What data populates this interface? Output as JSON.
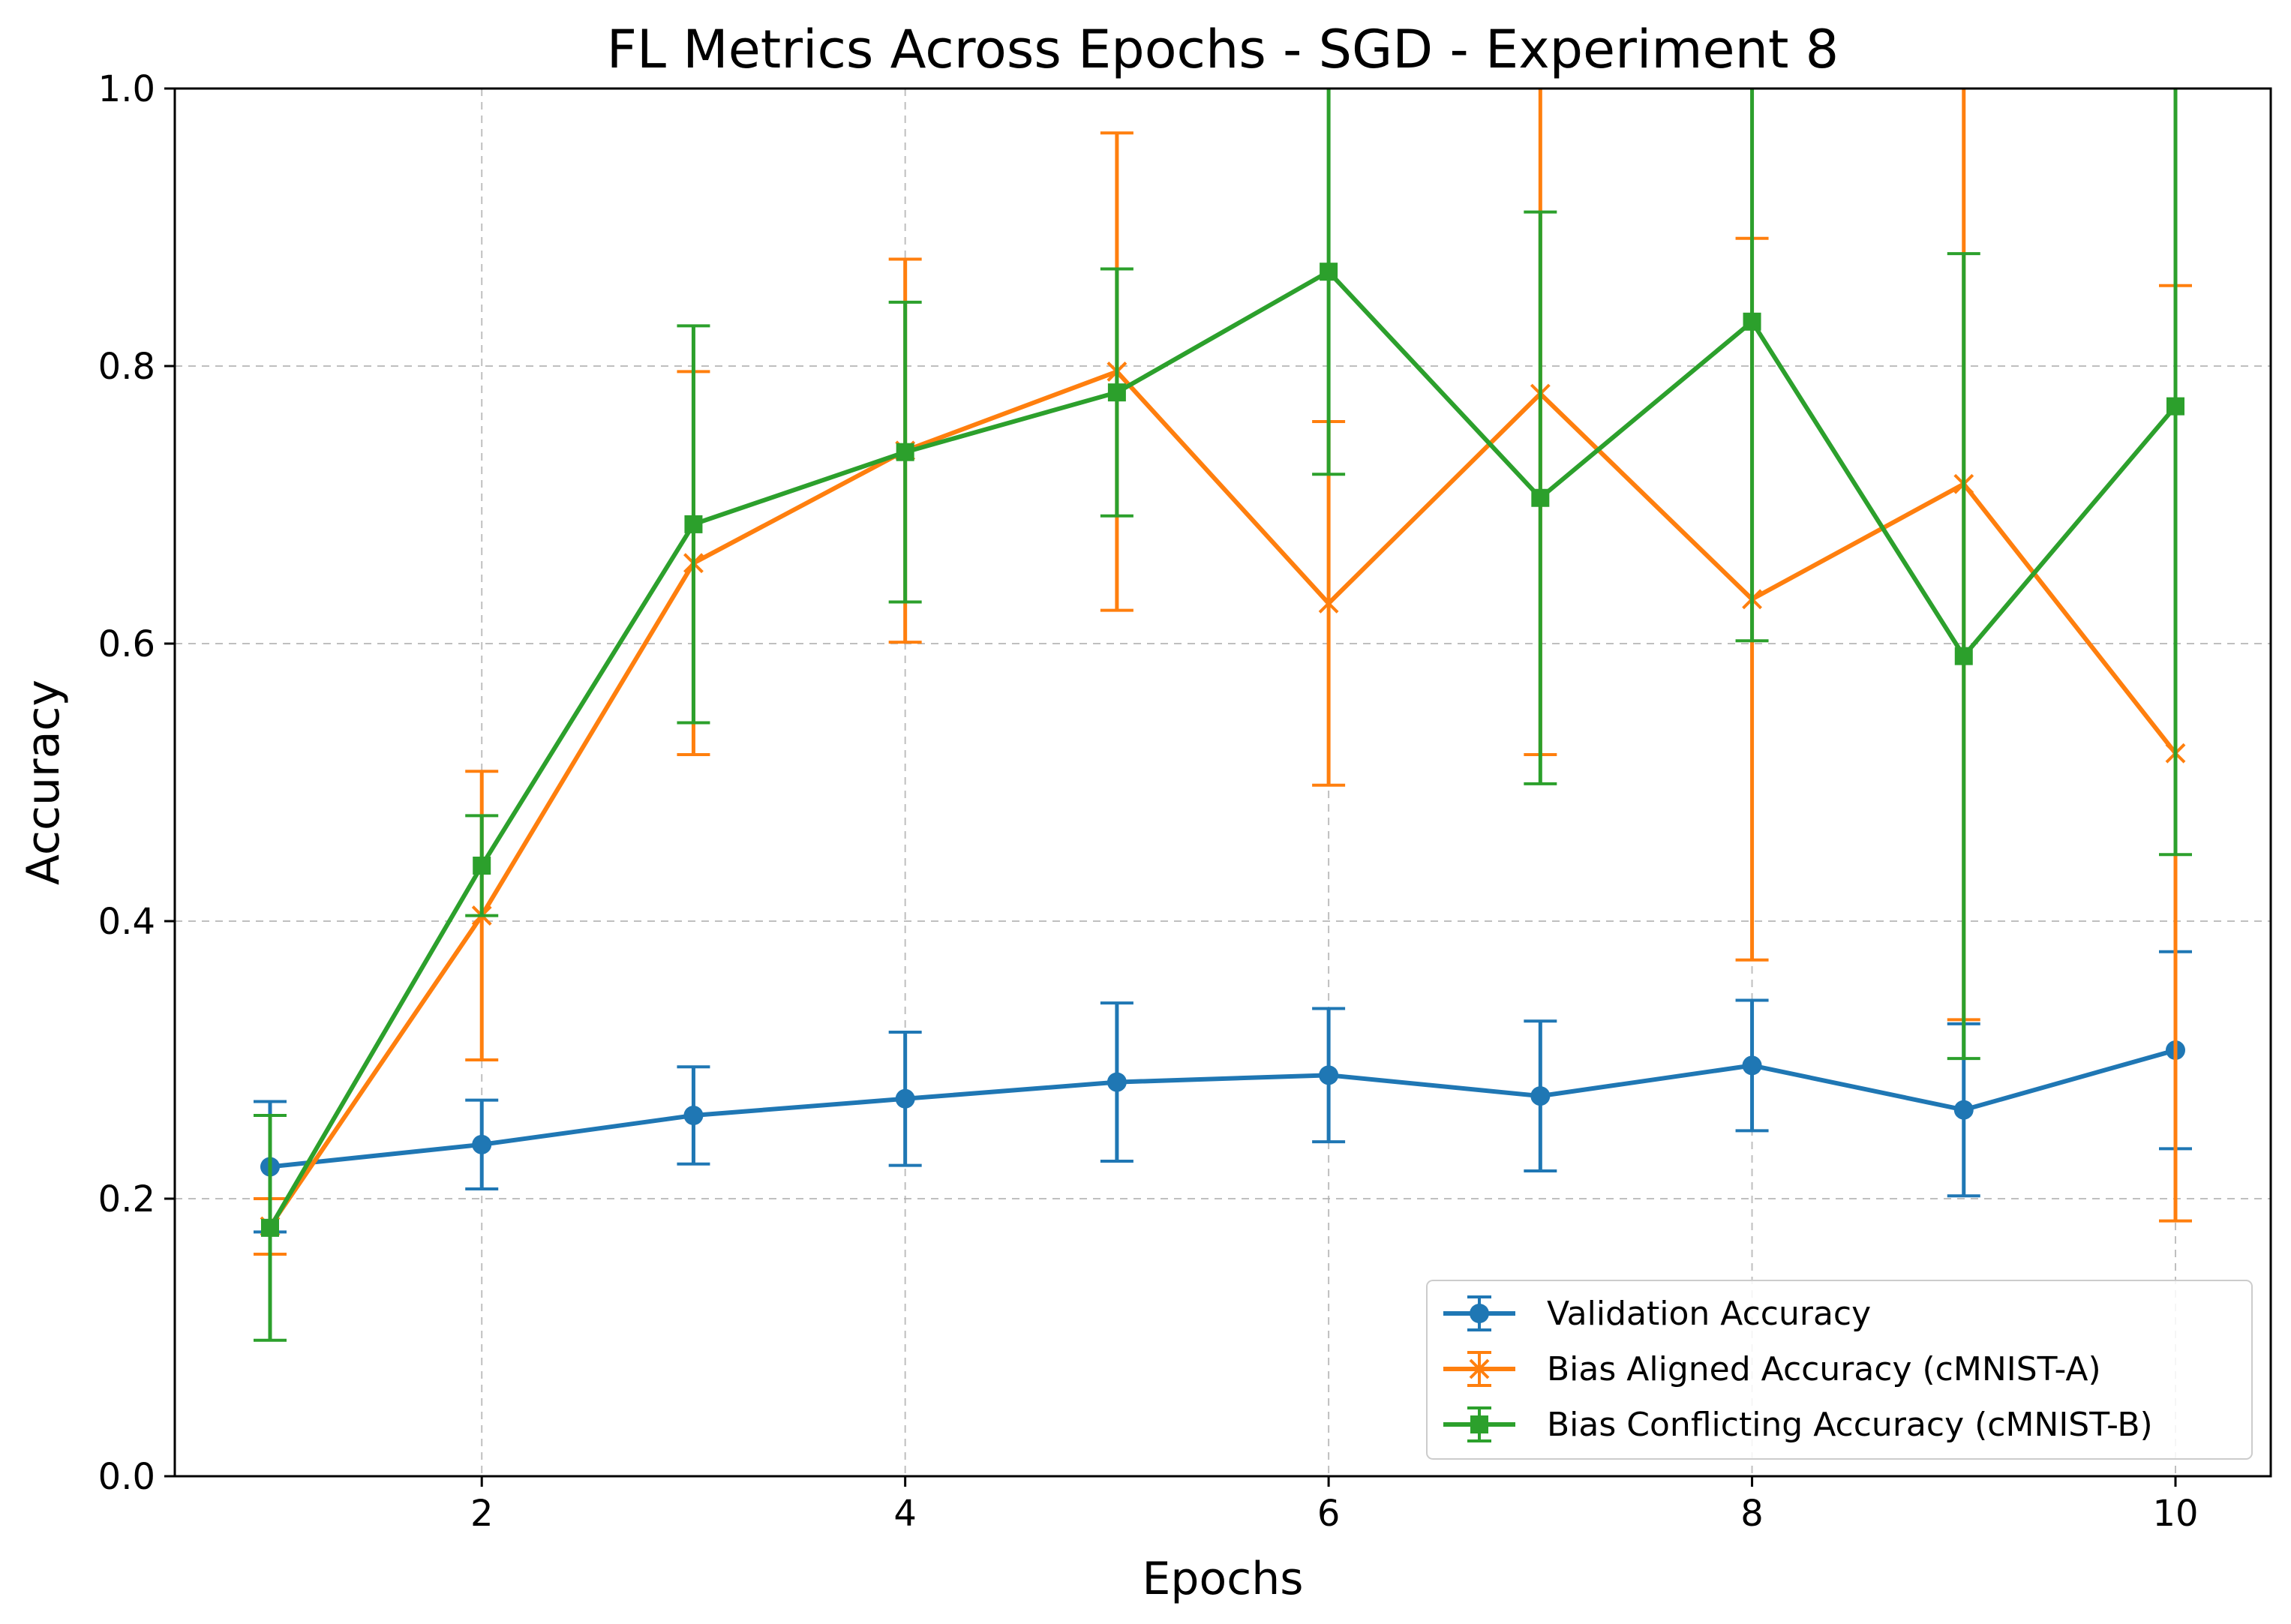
{
  "chart_data": {
    "type": "line",
    "title": "FL Metrics Across Epochs - SGD - Experiment 8",
    "xlabel": "Epochs",
    "ylabel": "Accuracy",
    "xlim": [
      0.55,
      10.45
    ],
    "ylim": [
      0.0,
      1.0
    ],
    "xticks": [
      2,
      4,
      6,
      8,
      10
    ],
    "yticks": [
      0.0,
      0.2,
      0.4,
      0.6,
      0.8,
      1.0
    ],
    "xtick_labels": [
      "2",
      "4",
      "6",
      "8",
      "10"
    ],
    "ytick_labels": [
      "0.0",
      "0.2",
      "0.4",
      "0.6",
      "0.8",
      "1.0"
    ],
    "grid": true,
    "legend_position": "lower-right",
    "x": [
      1,
      2,
      3,
      4,
      5,
      6,
      7,
      8,
      9,
      10
    ],
    "series": [
      {
        "name": "Validation Accuracy",
        "color": "#1f77b4",
        "marker": "circle",
        "values": [
          0.223,
          0.239,
          0.26,
          0.272,
          0.284,
          0.289,
          0.274,
          0.296,
          0.264,
          0.307
        ],
        "errors": [
          0.047,
          0.032,
          0.035,
          0.048,
          0.057,
          0.048,
          0.054,
          0.047,
          0.062,
          0.071
        ]
      },
      {
        "name": "Bias Aligned Accuracy (cMNIST-A)",
        "color": "#ff7f0e",
        "marker": "x",
        "values": [
          0.18,
          0.404,
          0.658,
          0.739,
          0.796,
          0.629,
          0.78,
          0.632,
          0.715,
          0.521
        ],
        "errors": [
          0.02,
          0.104,
          0.138,
          0.138,
          0.172,
          0.131,
          0.26,
          0.26,
          0.386,
          0.337
        ]
      },
      {
        "name": "Bias Conflicting Accuracy (cMNIST-B)",
        "color": "#2ca02c",
        "marker": "square",
        "values": [
          0.179,
          0.44,
          0.686,
          0.738,
          0.781,
          0.868,
          0.705,
          0.832,
          0.591,
          0.771
        ],
        "errors": [
          0.081,
          0.036,
          0.143,
          0.108,
          0.089,
          0.146,
          0.206,
          0.23,
          0.29,
          0.323
        ]
      }
    ]
  }
}
